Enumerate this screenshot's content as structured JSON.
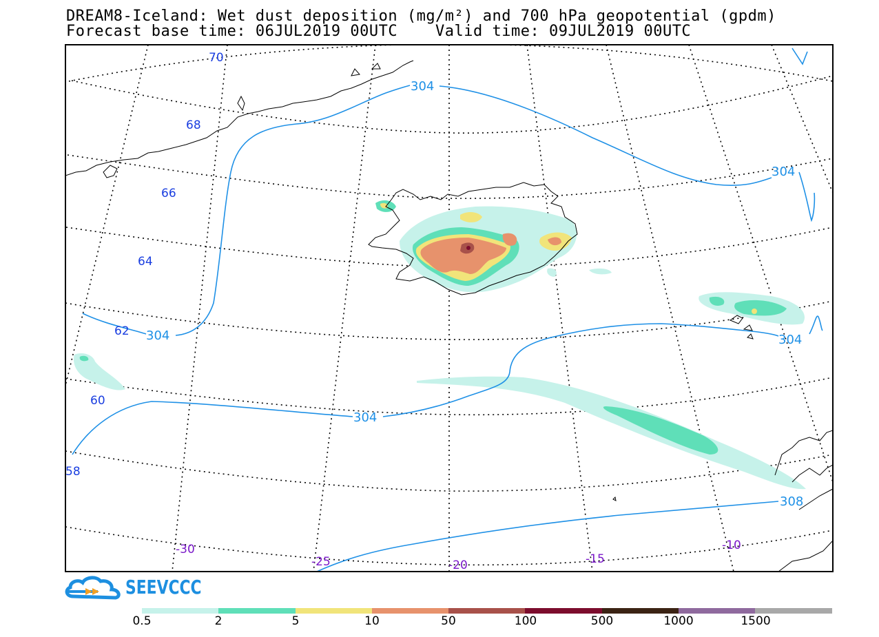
{
  "header": {
    "title_line1": "DREAM8-Iceland: Wet dust deposition (mg/m²) and 700 hPa geopotential (gpdm)",
    "title_line2": "Forecast base time: 06JUL2019 00UTC    Valid time: 09JUL2019 00UTC"
  },
  "map": {
    "lat_labels": [
      "70",
      "68",
      "66",
      "64",
      "62",
      "60",
      "58"
    ],
    "lon_labels": [
      "-30",
      "-25",
      "-20",
      "-15",
      "-10"
    ],
    "contour_labels": [
      "304",
      "304",
      "304",
      "304",
      "304",
      "308"
    ],
    "colors": {
      "contour_line": "#1e90e6",
      "lat_label": "#1a3ee0",
      "lon_label": "#7a18c8"
    }
  },
  "logo": {
    "text": "SEEVCCC"
  },
  "legend": {
    "tick_labels": [
      "0.5",
      "2",
      "5",
      "10",
      "50",
      "100",
      "500",
      "1000",
      "1500"
    ],
    "colors": [
      "#c6f2ea",
      "#5fdfb8",
      "#f1e47a",
      "#e7926c",
      "#a8514a",
      "#7c0c2d",
      "#3b2314",
      "#8f6a9e",
      "#a8a8a8"
    ]
  }
}
